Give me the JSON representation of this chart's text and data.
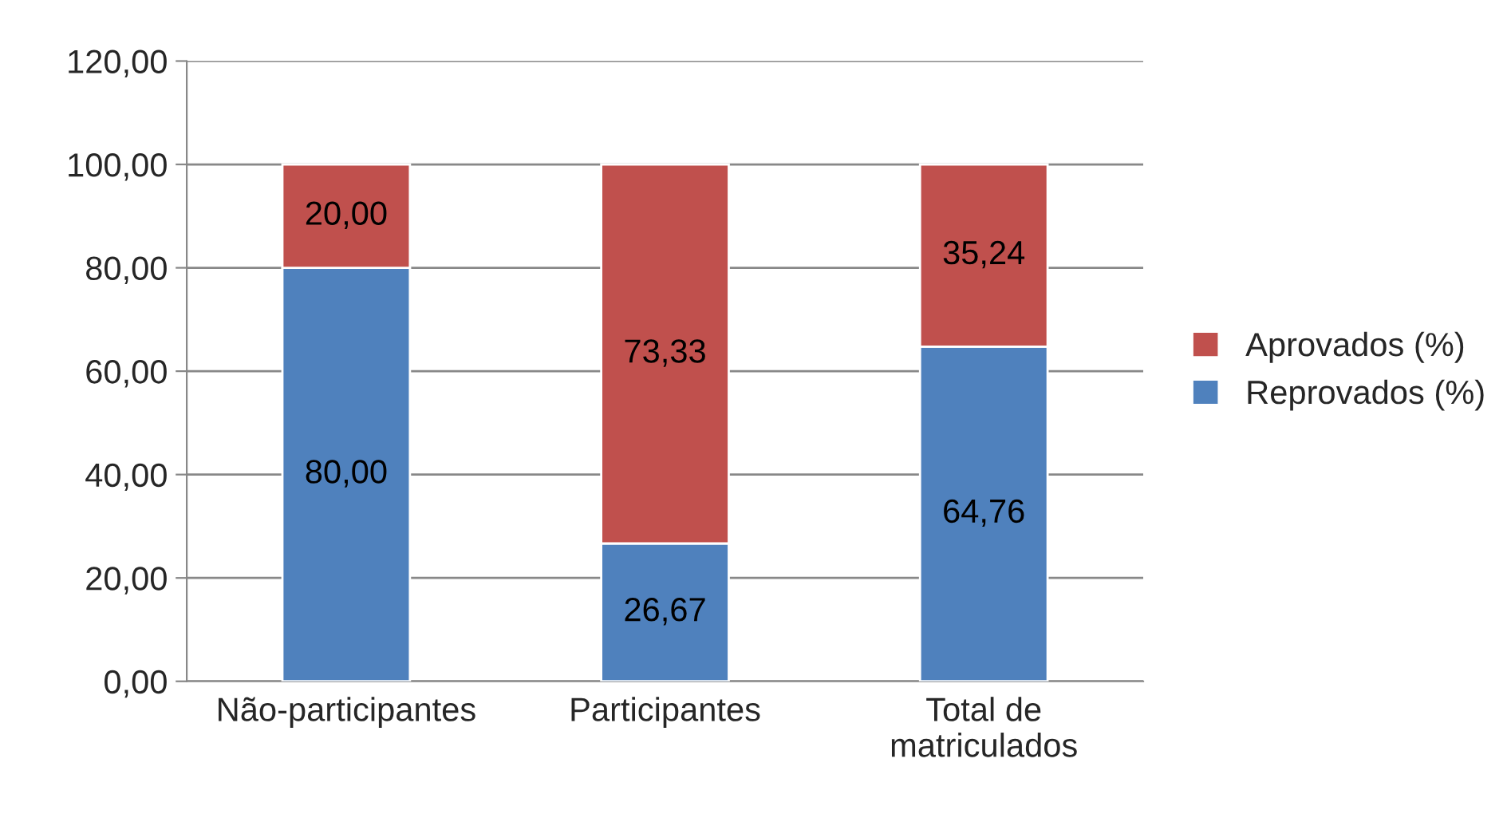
{
  "chart_data": {
    "type": "bar",
    "stacked": true,
    "categories": [
      "Não-participantes",
      "Participantes",
      "Total de\nmatriculados"
    ],
    "series": [
      {
        "name": "Reprovados (%)",
        "color": "#4f81bd",
        "values": [
          80.0,
          26.67,
          64.76
        ],
        "value_labels": [
          "80,00",
          "26,67",
          "64,76"
        ]
      },
      {
        "name": "Aprovados (%)",
        "color": "#c0504d",
        "values": [
          20.0,
          73.33,
          35.24
        ],
        "value_labels": [
          "20,00",
          "73,33",
          "35,24"
        ]
      }
    ],
    "ylim": [
      0,
      120
    ],
    "yticks": [
      {
        "value": 0,
        "label": "0,00"
      },
      {
        "value": 20,
        "label": "20,00"
      },
      {
        "value": 40,
        "label": "40,00"
      },
      {
        "value": 60,
        "label": "60,00"
      },
      {
        "value": 80,
        "label": "80,00"
      },
      {
        "value": 100,
        "label": "100,00"
      },
      {
        "value": 120,
        "label": "120,00"
      }
    ],
    "grid": "y",
    "legend": "right"
  }
}
